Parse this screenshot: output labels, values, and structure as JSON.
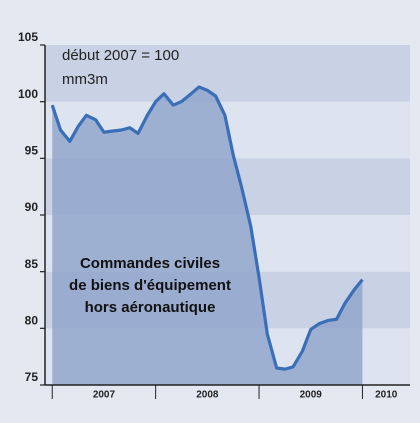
{
  "chart_data": {
    "type": "line",
    "annotations": [
      "début 2007 = 100",
      "mm3m"
    ],
    "label_lines": [
      "Commandes civiles",
      "de biens d'équipement",
      "hors aéronautique"
    ],
    "x": [
      2007.0,
      2007.08,
      2007.17,
      2007.25,
      2007.33,
      2007.42,
      2007.5,
      2007.58,
      2007.67,
      2007.75,
      2007.83,
      2007.92,
      2008.0,
      2008.08,
      2008.17,
      2008.25,
      2008.33,
      2008.42,
      2008.5,
      2008.58,
      2008.67,
      2008.75,
      2008.83,
      2008.92,
      2009.0,
      2009.08,
      2009.17,
      2009.25,
      2009.33,
      2009.42,
      2009.5,
      2009.58,
      2009.67,
      2009.75,
      2009.83,
      2009.92,
      2010.0
    ],
    "series": [
      {
        "color": "#3a6fb8",
        "fill": "#8ea2cb",
        "values": [
          99.7,
          97.5,
          96.5,
          97.8,
          98.8,
          98.4,
          97.3,
          97.4,
          97.5,
          97.7,
          97.2,
          98.8,
          100.0,
          100.7,
          99.7,
          100.0,
          100.6,
          101.3,
          101.0,
          100.5,
          98.8,
          95.3,
          92.5,
          89.0,
          84.5,
          79.5,
          76.5,
          76.4,
          76.6,
          78.0,
          79.9,
          80.4,
          80.7,
          80.8,
          82.2,
          83.4,
          84.3
        ]
      }
    ],
    "xlim": [
      2006.93,
      2010.46
    ],
    "xticks": [
      2007,
      2008,
      2009,
      2010
    ],
    "ylim": [
      75,
      105
    ],
    "yticks": [
      75,
      80,
      85,
      90,
      95,
      100,
      105
    ],
    "band_colors": [
      "#c9d2e5",
      "#dde3ef"
    ]
  }
}
